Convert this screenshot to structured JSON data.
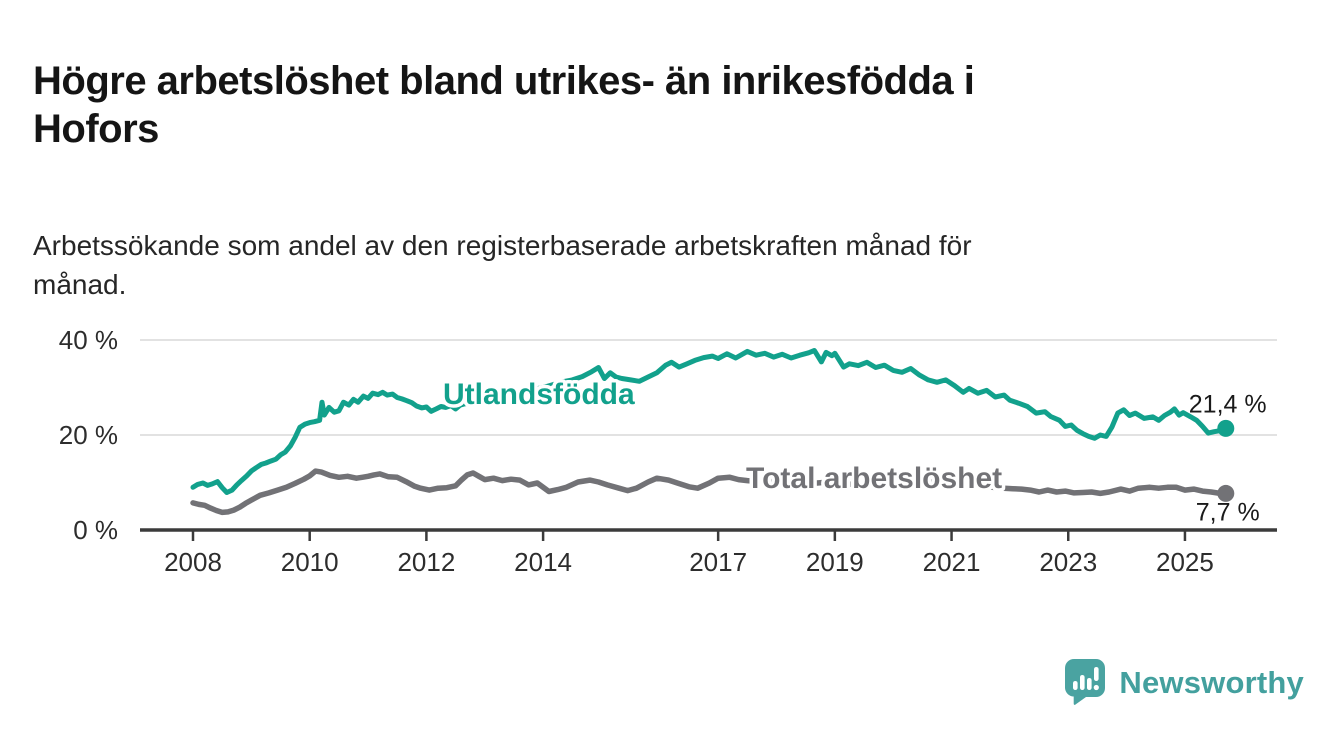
{
  "page": {
    "title": "Högre arbetslöshet bland utrikes- än inrikesfödda i Hofors",
    "title_lines": [
      "Högre arbetslöshet bland utrikes- än inrikesfödda i",
      "Hofors"
    ],
    "subtitle": "Arbetssökande som andel av den registerbaserade arbetskraften månad för månad.",
    "subtitle_lines": [
      "Arbetssökande som andel av den registerbaserade arbetskraften månad för",
      "månad."
    ],
    "branding": {
      "logo_text": "Newsworthy",
      "logo_icon": "newsworthy-speech-bubble-bar-chart-icon",
      "icon_color": "#4AA3A1",
      "text_color": "#43A09E"
    }
  },
  "chart_data": {
    "type": "line",
    "title": "Högre arbetslöshet bland utrikes- än inrikesfödda i Hofors",
    "subtitle": "Arbetssökande som andel av den registerbaserade arbetskraften månad för månad.",
    "xlabel": "",
    "ylabel": "",
    "x_unit": "year",
    "x_range": [
      2007.1,
      2026.6
    ],
    "ylim": [
      0,
      42
    ],
    "grid": "horizontal",
    "legend_position": "inline-labels",
    "x_ticks": [
      {
        "year": 2008,
        "label": "2008"
      },
      {
        "year": 2010,
        "label": "2010"
      },
      {
        "year": 2012,
        "label": "2012"
      },
      {
        "year": 2014,
        "label": "2014"
      },
      {
        "year": 2017,
        "label": "2017"
      },
      {
        "year": 2019,
        "label": "2019"
      },
      {
        "year": 2021,
        "label": "2021"
      },
      {
        "year": 2023,
        "label": "2023"
      },
      {
        "year": 2025,
        "label": "2025"
      }
    ],
    "y_ticks": [
      {
        "value": 0,
        "label": "0 %"
      },
      {
        "value": 20,
        "label": "20 %"
      },
      {
        "value": 40,
        "label": "40 %"
      }
    ],
    "series": [
      {
        "name": "Utlandsfödda",
        "color": "#12A18C",
        "end_value": 21.4,
        "end_label": "21,4 %",
        "points": [
          [
            2008.0,
            9.0
          ],
          [
            2008.08,
            9.6
          ],
          [
            2008.17,
            9.9
          ],
          [
            2008.25,
            9.4
          ],
          [
            2008.33,
            9.7
          ],
          [
            2008.42,
            10.2
          ],
          [
            2008.5,
            8.9
          ],
          [
            2008.58,
            7.9
          ],
          [
            2008.67,
            8.4
          ],
          [
            2008.75,
            9.5
          ],
          [
            2008.83,
            10.4
          ],
          [
            2008.92,
            11.4
          ],
          [
            2009.0,
            12.4
          ],
          [
            2009.08,
            13.1
          ],
          [
            2009.17,
            13.8
          ],
          [
            2009.25,
            14.1
          ],
          [
            2009.33,
            14.5
          ],
          [
            2009.42,
            14.9
          ],
          [
            2009.5,
            15.8
          ],
          [
            2009.58,
            16.4
          ],
          [
            2009.67,
            17.7
          ],
          [
            2009.75,
            19.5
          ],
          [
            2009.83,
            21.6
          ],
          [
            2009.92,
            22.3
          ],
          [
            2010.0,
            22.6
          ],
          [
            2010.08,
            22.8
          ],
          [
            2010.17,
            23.1
          ],
          [
            2010.21,
            26.9
          ],
          [
            2010.25,
            24.2
          ],
          [
            2010.33,
            25.8
          ],
          [
            2010.42,
            24.8
          ],
          [
            2010.5,
            25.1
          ],
          [
            2010.58,
            26.9
          ],
          [
            2010.67,
            26.3
          ],
          [
            2010.75,
            27.5
          ],
          [
            2010.83,
            26.9
          ],
          [
            2010.92,
            28.2
          ],
          [
            2011.0,
            27.7
          ],
          [
            2011.08,
            28.8
          ],
          [
            2011.17,
            28.5
          ],
          [
            2011.25,
            29.0
          ],
          [
            2011.33,
            28.4
          ],
          [
            2011.42,
            28.6
          ],
          [
            2011.5,
            27.9
          ],
          [
            2011.58,
            27.6
          ],
          [
            2011.67,
            27.2
          ],
          [
            2011.75,
            26.8
          ],
          [
            2011.83,
            26.1
          ],
          [
            2011.92,
            25.7
          ],
          [
            2012.0,
            25.9
          ],
          [
            2012.08,
            25.0
          ],
          [
            2012.17,
            25.5
          ],
          [
            2012.25,
            26.0
          ],
          [
            2012.33,
            25.8
          ],
          [
            2012.42,
            26.2
          ],
          [
            2012.5,
            25.5
          ],
          [
            2012.58,
            26.3
          ],
          [
            2012.67,
            26.6
          ],
          [
            2012.75,
            26.4
          ],
          [
            2012.83,
            27.0
          ],
          [
            2012.92,
            27.4
          ],
          [
            2013.0,
            27.2
          ],
          [
            2013.17,
            27.8
          ],
          [
            2013.33,
            28.3
          ],
          [
            2013.5,
            28.1
          ],
          [
            2013.67,
            28.9
          ],
          [
            2013.83,
            29.6
          ],
          [
            2014.0,
            30.0
          ],
          [
            2014.17,
            30.6
          ],
          [
            2014.33,
            31.2
          ],
          [
            2014.5,
            31.6
          ],
          [
            2014.67,
            32.3
          ],
          [
            2014.83,
            33.3
          ],
          [
            2014.95,
            34.2
          ],
          [
            2015.05,
            31.9
          ],
          [
            2015.15,
            33.1
          ],
          [
            2015.25,
            32.2
          ],
          [
            2015.35,
            31.9
          ],
          [
            2015.5,
            31.6
          ],
          [
            2015.65,
            31.3
          ],
          [
            2015.8,
            32.2
          ],
          [
            2015.95,
            33.1
          ],
          [
            2016.1,
            34.7
          ],
          [
            2016.2,
            35.3
          ],
          [
            2016.33,
            34.3
          ],
          [
            2016.45,
            34.9
          ],
          [
            2016.6,
            35.7
          ],
          [
            2016.75,
            36.3
          ],
          [
            2016.9,
            36.6
          ],
          [
            2017.0,
            36.1
          ],
          [
            2017.15,
            37.1
          ],
          [
            2017.3,
            36.2
          ],
          [
            2017.5,
            37.6
          ],
          [
            2017.65,
            36.8
          ],
          [
            2017.8,
            37.2
          ],
          [
            2017.95,
            36.4
          ],
          [
            2018.1,
            37.0
          ],
          [
            2018.25,
            36.2
          ],
          [
            2018.4,
            36.8
          ],
          [
            2018.55,
            37.3
          ],
          [
            2018.65,
            37.8
          ],
          [
            2018.77,
            35.4
          ],
          [
            2018.85,
            37.4
          ],
          [
            2018.95,
            36.7
          ],
          [
            2019.0,
            37.2
          ],
          [
            2019.15,
            34.3
          ],
          [
            2019.25,
            35.0
          ],
          [
            2019.4,
            34.6
          ],
          [
            2019.55,
            35.3
          ],
          [
            2019.7,
            34.2
          ],
          [
            2019.85,
            34.7
          ],
          [
            2020.0,
            33.6
          ],
          [
            2020.15,
            33.2
          ],
          [
            2020.3,
            34.0
          ],
          [
            2020.45,
            32.6
          ],
          [
            2020.6,
            31.6
          ],
          [
            2020.75,
            31.1
          ],
          [
            2020.9,
            31.6
          ],
          [
            2021.05,
            30.4
          ],
          [
            2021.2,
            29.0
          ],
          [
            2021.3,
            29.8
          ],
          [
            2021.45,
            28.8
          ],
          [
            2021.6,
            29.4
          ],
          [
            2021.75,
            28.0
          ],
          [
            2021.9,
            28.4
          ],
          [
            2022.0,
            27.3
          ],
          [
            2022.15,
            26.7
          ],
          [
            2022.3,
            26.0
          ],
          [
            2022.45,
            24.6
          ],
          [
            2022.6,
            24.9
          ],
          [
            2022.7,
            23.9
          ],
          [
            2022.85,
            23.1
          ],
          [
            2022.95,
            21.8
          ],
          [
            2023.05,
            22.1
          ],
          [
            2023.15,
            21.0
          ],
          [
            2023.25,
            20.3
          ],
          [
            2023.35,
            19.7
          ],
          [
            2023.45,
            19.3
          ],
          [
            2023.55,
            20.0
          ],
          [
            2023.65,
            19.7
          ],
          [
            2023.75,
            21.7
          ],
          [
            2023.85,
            24.6
          ],
          [
            2023.95,
            25.3
          ],
          [
            2024.05,
            24.1
          ],
          [
            2024.15,
            24.6
          ],
          [
            2024.3,
            23.5
          ],
          [
            2024.45,
            23.8
          ],
          [
            2024.55,
            23.1
          ],
          [
            2024.65,
            24.1
          ],
          [
            2024.75,
            24.8
          ],
          [
            2024.82,
            25.5
          ],
          [
            2024.9,
            24.2
          ],
          [
            2024.97,
            24.7
          ],
          [
            2025.1,
            23.8
          ],
          [
            2025.2,
            23.1
          ],
          [
            2025.3,
            21.8
          ],
          [
            2025.4,
            20.4
          ],
          [
            2025.5,
            20.7
          ],
          [
            2025.6,
            20.9
          ],
          [
            2025.7,
            21.4
          ]
        ]
      },
      {
        "name": "Total arbetslöshet",
        "color": "#727276",
        "end_value": 7.7,
        "end_label": "7,7 %",
        "points": [
          [
            2008.0,
            5.7
          ],
          [
            2008.1,
            5.4
          ],
          [
            2008.2,
            5.2
          ],
          [
            2008.3,
            4.6
          ],
          [
            2008.4,
            4.1
          ],
          [
            2008.5,
            3.7
          ],
          [
            2008.6,
            3.8
          ],
          [
            2008.7,
            4.2
          ],
          [
            2008.8,
            4.8
          ],
          [
            2008.9,
            5.6
          ],
          [
            2009.0,
            6.3
          ],
          [
            2009.15,
            7.3
          ],
          [
            2009.3,
            7.8
          ],
          [
            2009.45,
            8.4
          ],
          [
            2009.6,
            9.0
          ],
          [
            2009.75,
            9.8
          ],
          [
            2009.9,
            10.7
          ],
          [
            2010.0,
            11.4
          ],
          [
            2010.1,
            12.4
          ],
          [
            2010.2,
            12.2
          ],
          [
            2010.35,
            11.5
          ],
          [
            2010.5,
            11.1
          ],
          [
            2010.65,
            11.3
          ],
          [
            2010.8,
            10.9
          ],
          [
            2010.9,
            11.1
          ],
          [
            2011.0,
            11.3
          ],
          [
            2011.1,
            11.6
          ],
          [
            2011.2,
            11.8
          ],
          [
            2011.35,
            11.2
          ],
          [
            2011.5,
            11.1
          ],
          [
            2011.65,
            10.2
          ],
          [
            2011.8,
            9.2
          ],
          [
            2011.9,
            8.8
          ],
          [
            2012.05,
            8.4
          ],
          [
            2012.2,
            8.8
          ],
          [
            2012.35,
            8.9
          ],
          [
            2012.5,
            9.3
          ],
          [
            2012.6,
            10.5
          ],
          [
            2012.7,
            11.6
          ],
          [
            2012.8,
            12.0
          ],
          [
            2012.9,
            11.3
          ],
          [
            2013.0,
            10.6
          ],
          [
            2013.15,
            10.9
          ],
          [
            2013.3,
            10.4
          ],
          [
            2013.45,
            10.7
          ],
          [
            2013.6,
            10.5
          ],
          [
            2013.75,
            9.5
          ],
          [
            2013.9,
            9.9
          ],
          [
            2014.1,
            8.1
          ],
          [
            2014.25,
            8.5
          ],
          [
            2014.4,
            9.0
          ],
          [
            2014.6,
            10.1
          ],
          [
            2014.8,
            10.5
          ],
          [
            2014.95,
            10.1
          ],
          [
            2015.1,
            9.5
          ],
          [
            2015.3,
            8.8
          ],
          [
            2015.45,
            8.3
          ],
          [
            2015.6,
            8.8
          ],
          [
            2015.8,
            10.1
          ],
          [
            2015.95,
            10.9
          ],
          [
            2016.15,
            10.5
          ],
          [
            2016.3,
            9.9
          ],
          [
            2016.5,
            9.1
          ],
          [
            2016.65,
            8.8
          ],
          [
            2016.85,
            9.9
          ],
          [
            2017.0,
            10.9
          ],
          [
            2017.2,
            11.1
          ],
          [
            2017.35,
            10.6
          ],
          [
            2017.5,
            10.4
          ],
          [
            2017.7,
            10.2
          ],
          [
            2017.9,
            10.5
          ],
          [
            2018.1,
            10.3
          ],
          [
            2018.3,
            10.0
          ],
          [
            2018.5,
            10.2
          ],
          [
            2018.7,
            9.9
          ],
          [
            2018.9,
            10.1
          ],
          [
            2019.1,
            9.8
          ],
          [
            2019.3,
            9.6
          ],
          [
            2019.5,
            9.7
          ],
          [
            2019.7,
            9.4
          ],
          [
            2019.9,
            9.6
          ],
          [
            2020.1,
            9.8
          ],
          [
            2020.3,
            10.2
          ],
          [
            2020.5,
            10.4
          ],
          [
            2020.7,
            10.1
          ],
          [
            2020.9,
            9.9
          ],
          [
            2021.1,
            9.7
          ],
          [
            2021.3,
            9.4
          ],
          [
            2021.5,
            9.2
          ],
          [
            2021.7,
            9.0
          ],
          [
            2021.9,
            8.8
          ],
          [
            2022.05,
            8.7
          ],
          [
            2022.2,
            8.6
          ],
          [
            2022.35,
            8.4
          ],
          [
            2022.5,
            8.0
          ],
          [
            2022.65,
            8.4
          ],
          [
            2022.8,
            8.0
          ],
          [
            2022.95,
            8.2
          ],
          [
            2023.1,
            7.8
          ],
          [
            2023.25,
            7.9
          ],
          [
            2023.4,
            8.0
          ],
          [
            2023.55,
            7.7
          ],
          [
            2023.7,
            8.0
          ],
          [
            2023.9,
            8.6
          ],
          [
            2024.05,
            8.2
          ],
          [
            2024.2,
            8.8
          ],
          [
            2024.4,
            9.0
          ],
          [
            2024.55,
            8.8
          ],
          [
            2024.7,
            9.0
          ],
          [
            2024.85,
            9.0
          ],
          [
            2025.0,
            8.4
          ],
          [
            2025.15,
            8.6
          ],
          [
            2025.3,
            8.2
          ],
          [
            2025.45,
            8.0
          ],
          [
            2025.6,
            7.7
          ],
          [
            2025.7,
            7.7
          ]
        ]
      }
    ]
  }
}
